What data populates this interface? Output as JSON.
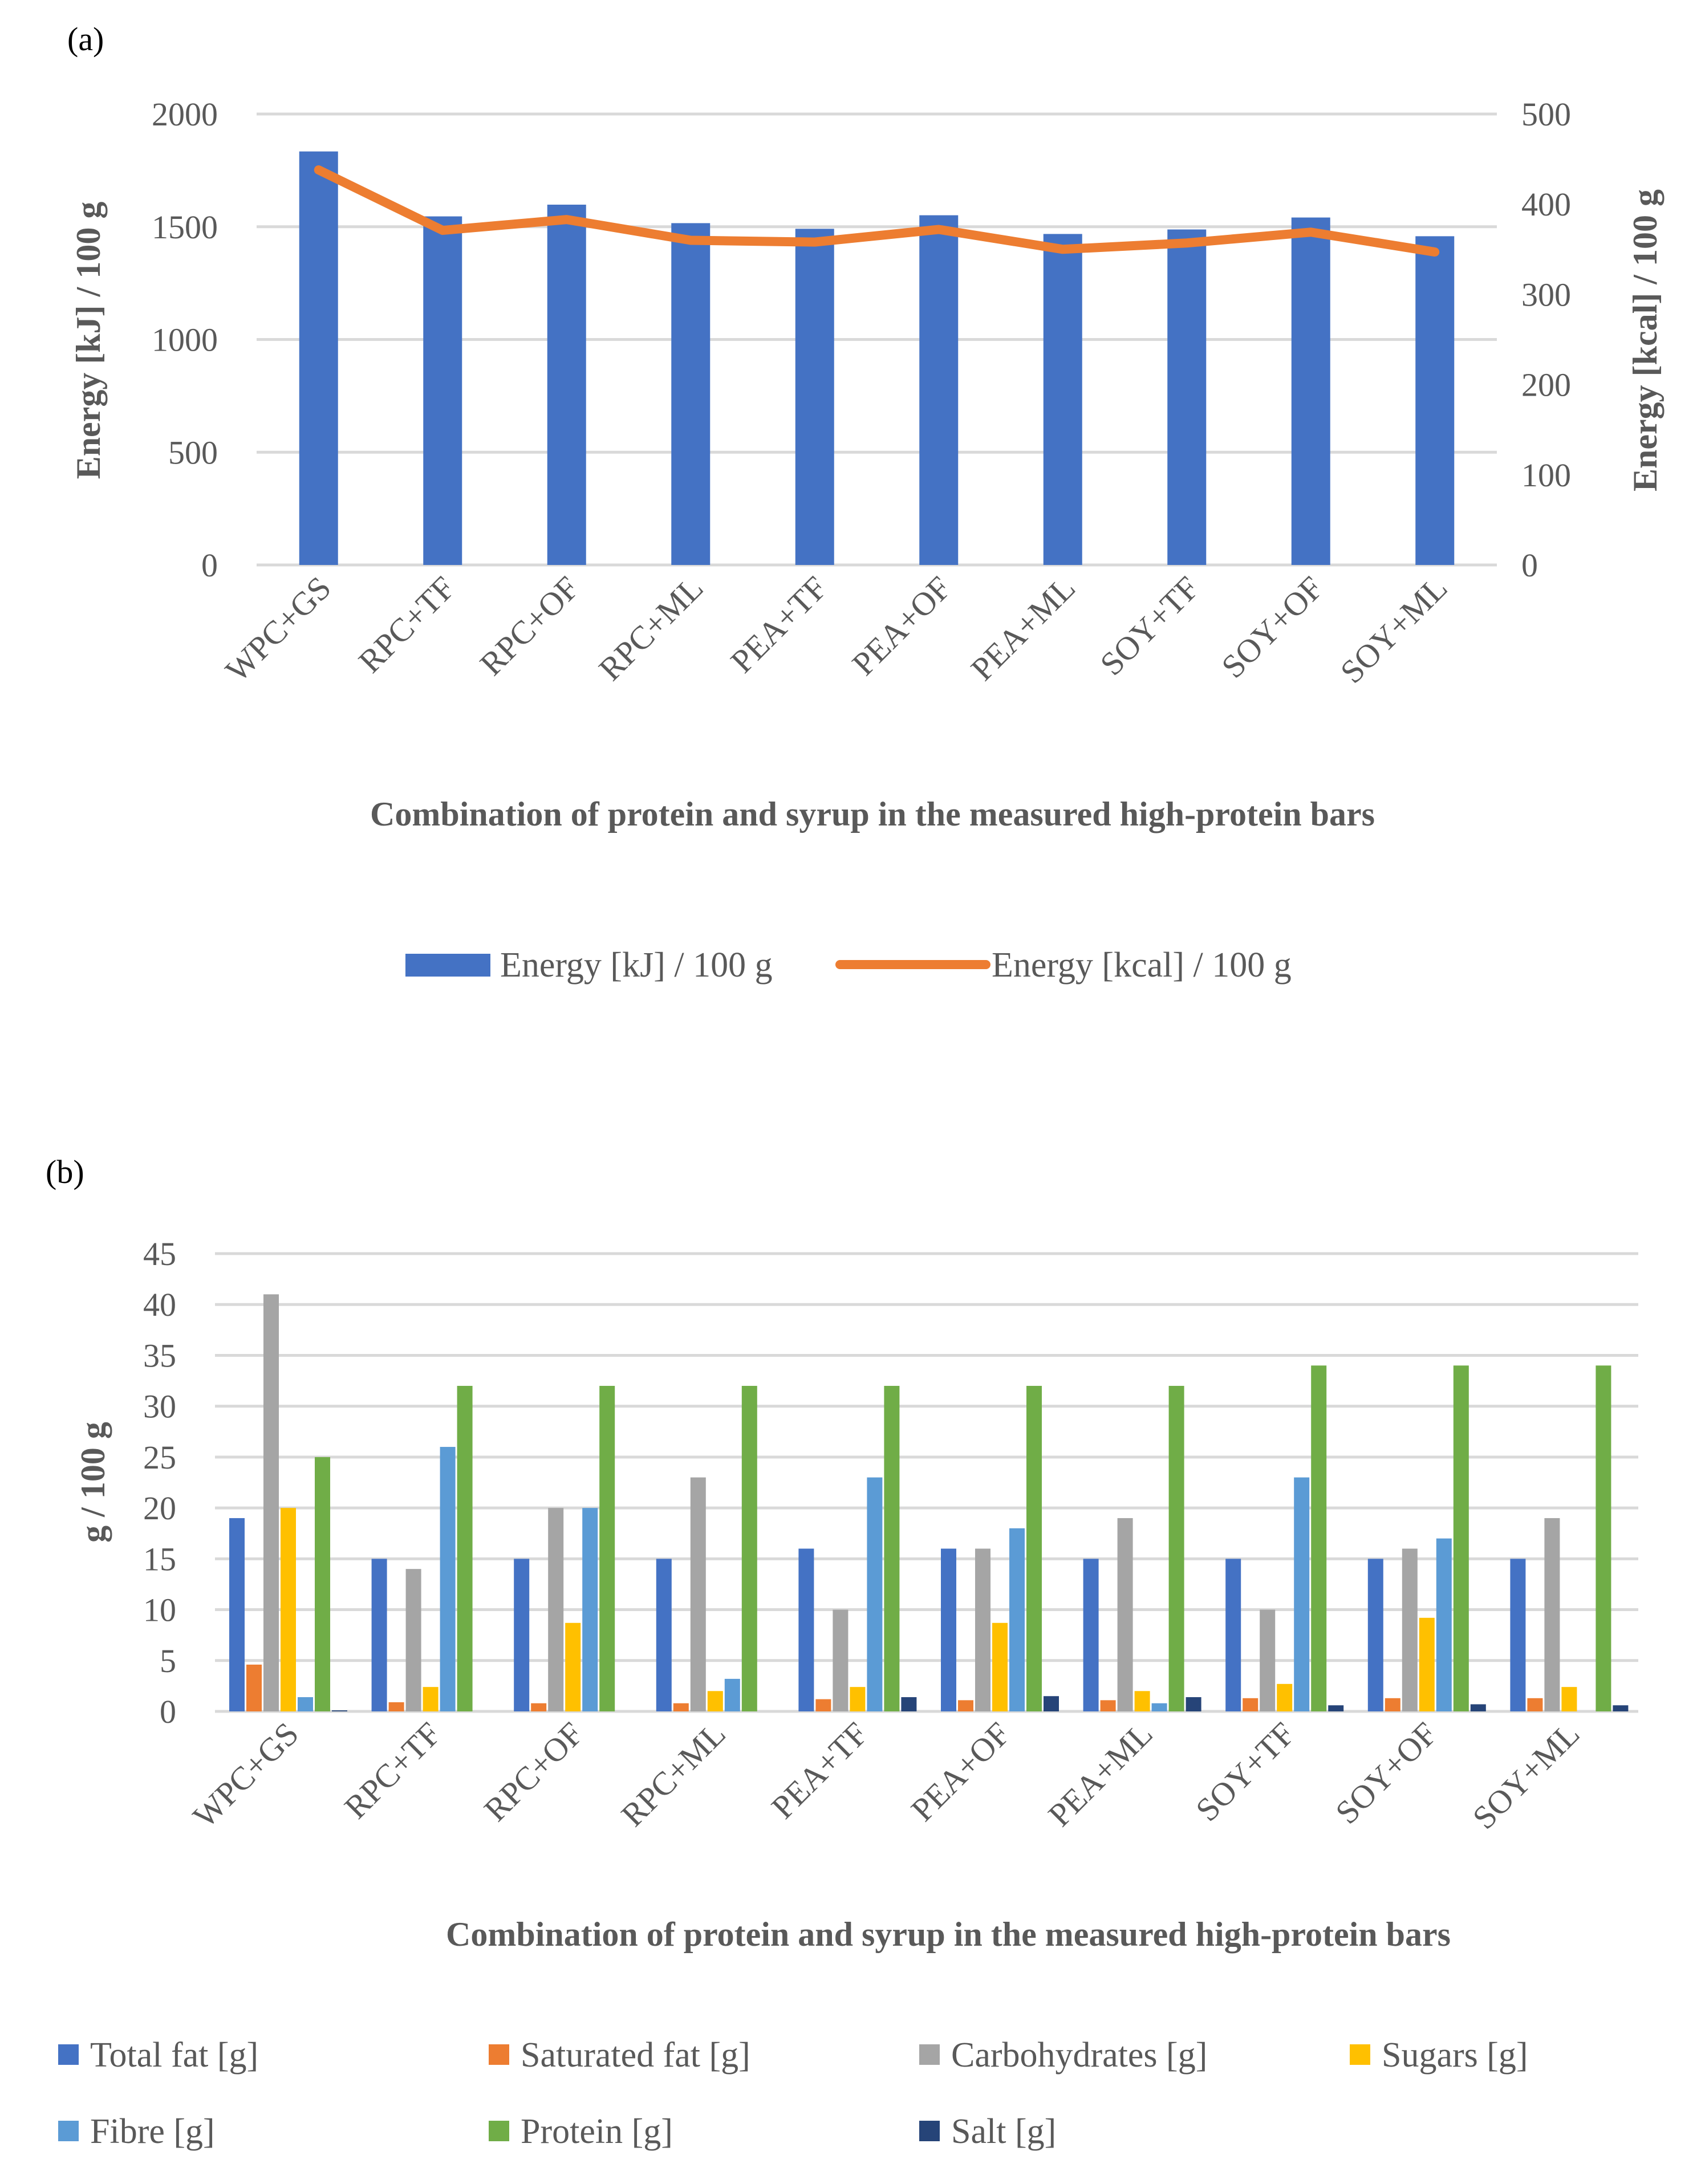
{
  "panels": {
    "a": "(a)",
    "b": "(b)"
  },
  "chart_data": [
    {
      "type": "bar+line",
      "categories": [
        "WPC+GS",
        "RPC+TF",
        "RPC+OF",
        "RPC+ML",
        "PEA+TF",
        "PEA+OF",
        "PEA+ML",
        "SOY+TF",
        "SOY+OF",
        "SOY+ML"
      ],
      "series": [
        {
          "name": "Energy [kJ] / 100 g",
          "type": "bar",
          "axis": "left",
          "color": "#4472C4",
          "values": [
            1834,
            1546,
            1598,
            1516,
            1491,
            1551,
            1468,
            1488,
            1541,
            1458
          ]
        },
        {
          "name": "Energy [kcal] / 100 g",
          "type": "line",
          "axis": "right",
          "color": "#ED7D31",
          "values": [
            438,
            371,
            383,
            360,
            358,
            372,
            350,
            357,
            369,
            347
          ]
        }
      ],
      "xlabel": "Combination of protein and syrup in the measured high-protein bars",
      "ylabel": "Energy [kJ] / 100 g",
      "y2label": "Energy [kcal] / 100 g",
      "ylim": [
        0,
        2000
      ],
      "yticks": [
        "0",
        "500",
        "1000",
        "1500",
        "2000"
      ],
      "y2lim": [
        0,
        500
      ],
      "y2ticks": [
        "0",
        "100",
        "200",
        "300",
        "400",
        "500"
      ],
      "grid": true,
      "legend": "bottom"
    },
    {
      "type": "bar",
      "categories": [
        "WPC+GS",
        "RPC+TF",
        "RPC+OF",
        "RPC+ML",
        "PEA+TF",
        "PEA+OF",
        "PEA+ML",
        "SOY+TF",
        "SOY+OF",
        "SOY+ML"
      ],
      "series": [
        {
          "name": "Total fat [g]",
          "color": "#4472C4",
          "values": [
            19,
            15,
            15,
            15,
            16,
            16,
            15,
            15,
            15,
            15
          ]
        },
        {
          "name": "Saturated fat [g]",
          "color": "#ED7D31",
          "values": [
            4.6,
            0.9,
            0.8,
            0.8,
            1.2,
            1.1,
            1.1,
            1.3,
            1.3,
            1.3
          ]
        },
        {
          "name": "Carbohydrates [g]",
          "color": "#A5A5A5",
          "values": [
            41,
            14,
            20,
            23,
            10,
            16,
            19,
            10,
            16,
            19
          ]
        },
        {
          "name": "Sugars [g]",
          "color": "#FFC000",
          "values": [
            20,
            2.4,
            8.7,
            2.0,
            2.4,
            8.7,
            2.0,
            2.7,
            9.2,
            2.4
          ]
        },
        {
          "name": "Fibre [g]",
          "color": "#5B9BD5",
          "values": [
            1.4,
            26,
            20,
            3.2,
            23,
            18,
            0.8,
            23,
            17,
            0
          ]
        },
        {
          "name": "Protein [g]",
          "color": "#70AD47",
          "values": [
            25,
            32,
            32,
            32,
            32,
            32,
            32,
            34,
            34,
            34
          ]
        },
        {
          "name": "Salt [g]",
          "color": "#264478",
          "values": [
            0.1,
            0,
            0,
            0,
            1.4,
            1.5,
            1.4,
            0.6,
            0.7,
            0.6
          ]
        }
      ],
      "xlabel": "Combination of protein and syrup in the measured high-protein bars",
      "ylabel": "g / 100 g",
      "ylim": [
        0,
        45
      ],
      "yticks": [
        "0",
        "5",
        "10",
        "15",
        "20",
        "25",
        "30",
        "35",
        "40",
        "45"
      ],
      "grid": true,
      "legend": "bottom"
    }
  ]
}
